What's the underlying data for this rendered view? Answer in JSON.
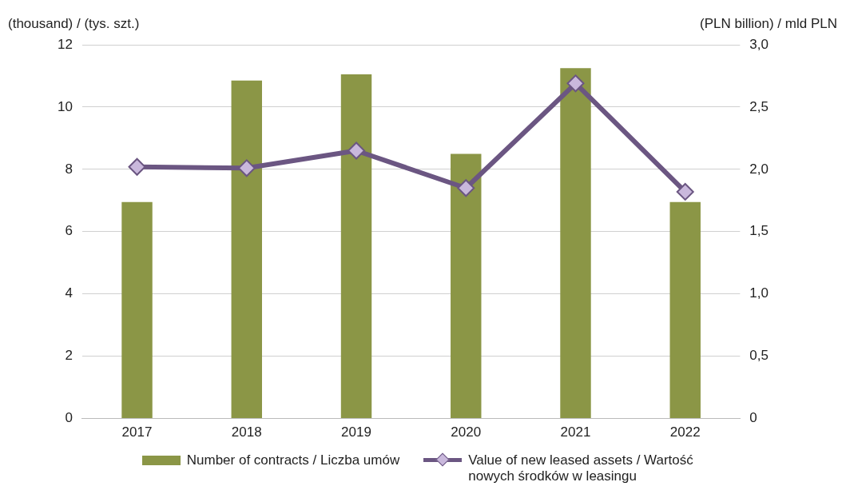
{
  "chart_data": {
    "type": "bar",
    "ylabel": "(thousand) / (tys. szt.)",
    "y2label": "(PLN billion) / mld PLN",
    "categories": [
      "2017",
      "2018",
      "2019",
      "2020",
      "2021",
      "2022"
    ],
    "series": [
      {
        "name": "Number of contracts / Liczba umów",
        "color": "#8b9646",
        "values": [
          6.95,
          10.85,
          11.05,
          8.5,
          11.25,
          6.95
        ]
      },
      {
        "name": "Value of new leased assets / Wartość nowych środków w leasingu",
        "type": "line",
        "axis": "y2",
        "color": "#6b5682",
        "marker": "diamond",
        "values": [
          2.02,
          2.01,
          2.15,
          1.85,
          2.69,
          1.82
        ]
      }
    ],
    "ylim": [
      0,
      12
    ],
    "yticks": [
      0,
      2,
      4,
      6,
      8,
      10,
      12
    ],
    "y2lim": [
      0,
      3
    ],
    "y2ticks": [
      {
        "value": 0,
        "label": "0"
      },
      {
        "value": 0.5,
        "label": "0,5"
      },
      {
        "value": 1,
        "label": "1,0"
      },
      {
        "value": 1.5,
        "label": "1,5"
      },
      {
        "value": 2,
        "label": "2,0"
      },
      {
        "value": 2.5,
        "label": "2,5"
      },
      {
        "value": 3,
        "label": "3,0"
      }
    ],
    "grid": "y",
    "legend": "bottom"
  }
}
